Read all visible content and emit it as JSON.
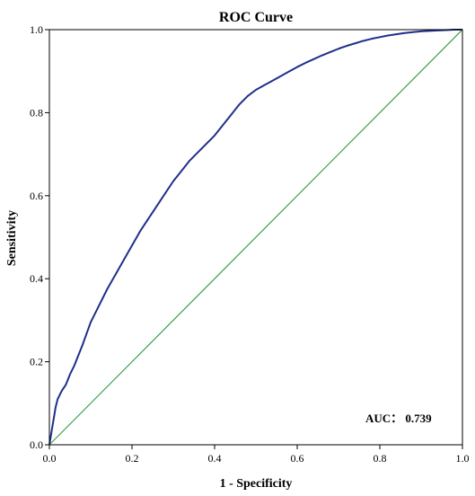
{
  "chart_data": {
    "type": "line",
    "title": "ROC Curve",
    "xlabel": "1 - Specificity",
    "ylabel": "Sensitivity",
    "xlim": [
      0.0,
      1.0
    ],
    "ylim": [
      0.0,
      1.0
    ],
    "x_ticks": [
      "0.0",
      "0.2",
      "0.4",
      "0.6",
      "0.8",
      "1.0"
    ],
    "y_ticks": [
      "0.0",
      "0.2",
      "0.4",
      "0.6",
      "0.8",
      "1.0"
    ],
    "grid": false,
    "annotation": "AUC： 0.739",
    "series": [
      {
        "color": "#1f2f8a",
        "x": [
          0.0,
          0.005,
          0.01,
          0.015,
          0.02,
          0.03,
          0.04,
          0.05,
          0.06,
          0.08,
          0.1,
          0.12,
          0.14,
          0.16,
          0.18,
          0.2,
          0.22,
          0.24,
          0.26,
          0.28,
          0.3,
          0.32,
          0.34,
          0.36,
          0.38,
          0.4,
          0.42,
          0.44,
          0.46,
          0.48,
          0.5,
          0.52,
          0.54,
          0.56,
          0.58,
          0.6,
          0.62,
          0.64,
          0.66,
          0.68,
          0.7,
          0.72,
          0.74,
          0.76,
          0.78,
          0.8,
          0.82,
          0.84,
          0.86,
          0.88,
          0.9,
          0.92,
          0.94,
          0.96,
          0.98,
          1.0
        ],
        "y": [
          0.0,
          0.03,
          0.06,
          0.09,
          0.11,
          0.13,
          0.145,
          0.17,
          0.19,
          0.24,
          0.295,
          0.335,
          0.375,
          0.41,
          0.445,
          0.48,
          0.515,
          0.545,
          0.575,
          0.605,
          0.635,
          0.66,
          0.685,
          0.705,
          0.725,
          0.745,
          0.77,
          0.795,
          0.82,
          0.84,
          0.855,
          0.866,
          0.877,
          0.888,
          0.899,
          0.91,
          0.92,
          0.929,
          0.938,
          0.946,
          0.954,
          0.961,
          0.967,
          0.973,
          0.978,
          0.982,
          0.986,
          0.989,
          0.992,
          0.994,
          0.996,
          0.997,
          0.998,
          0.999,
          1.0,
          1.0
        ]
      },
      {
        "color": "#3aa04a",
        "x": [
          0.0,
          1.0
        ],
        "y": [
          0.0,
          1.0
        ]
      }
    ]
  }
}
